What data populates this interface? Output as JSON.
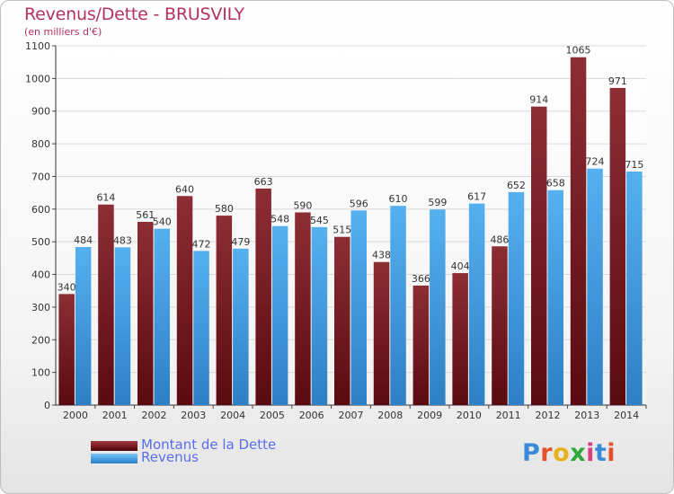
{
  "chart_data": {
    "type": "bar",
    "title": "Revenus/Dette - BRUSVILY",
    "subtitle": "(en milliers d'€)",
    "categories": [
      "2000",
      "2001",
      "2002",
      "2003",
      "2004",
      "2005",
      "2006",
      "2007",
      "2008",
      "2009",
      "2010",
      "2011",
      "2012",
      "2013",
      "2014"
    ],
    "series": [
      {
        "name": "Montant de la Dette",
        "color": "#7b1f24",
        "values": [
          340,
          614,
          561,
          640,
          580,
          663,
          590,
          515,
          438,
          366,
          404,
          486,
          914,
          1065,
          971
        ]
      },
      {
        "name": "Revenus",
        "color": "#4aa3e6",
        "values": [
          484,
          483,
          540,
          472,
          479,
          548,
          545,
          596,
          610,
          599,
          617,
          652,
          658,
          724,
          715
        ]
      }
    ],
    "ylim": [
      0,
      1100
    ],
    "yticks": [
      0,
      100,
      200,
      300,
      400,
      500,
      600,
      700,
      800,
      900,
      1000,
      1100
    ],
    "grid": true,
    "legend_position": "bottom-left"
  },
  "logo": {
    "text": "Proxiti",
    "letter_colors": [
      "#3b8ad9",
      "#e2502c",
      "#e8b21a",
      "#2fa83a",
      "#d6407e",
      "#3b8ad9",
      "#e2502c"
    ]
  }
}
